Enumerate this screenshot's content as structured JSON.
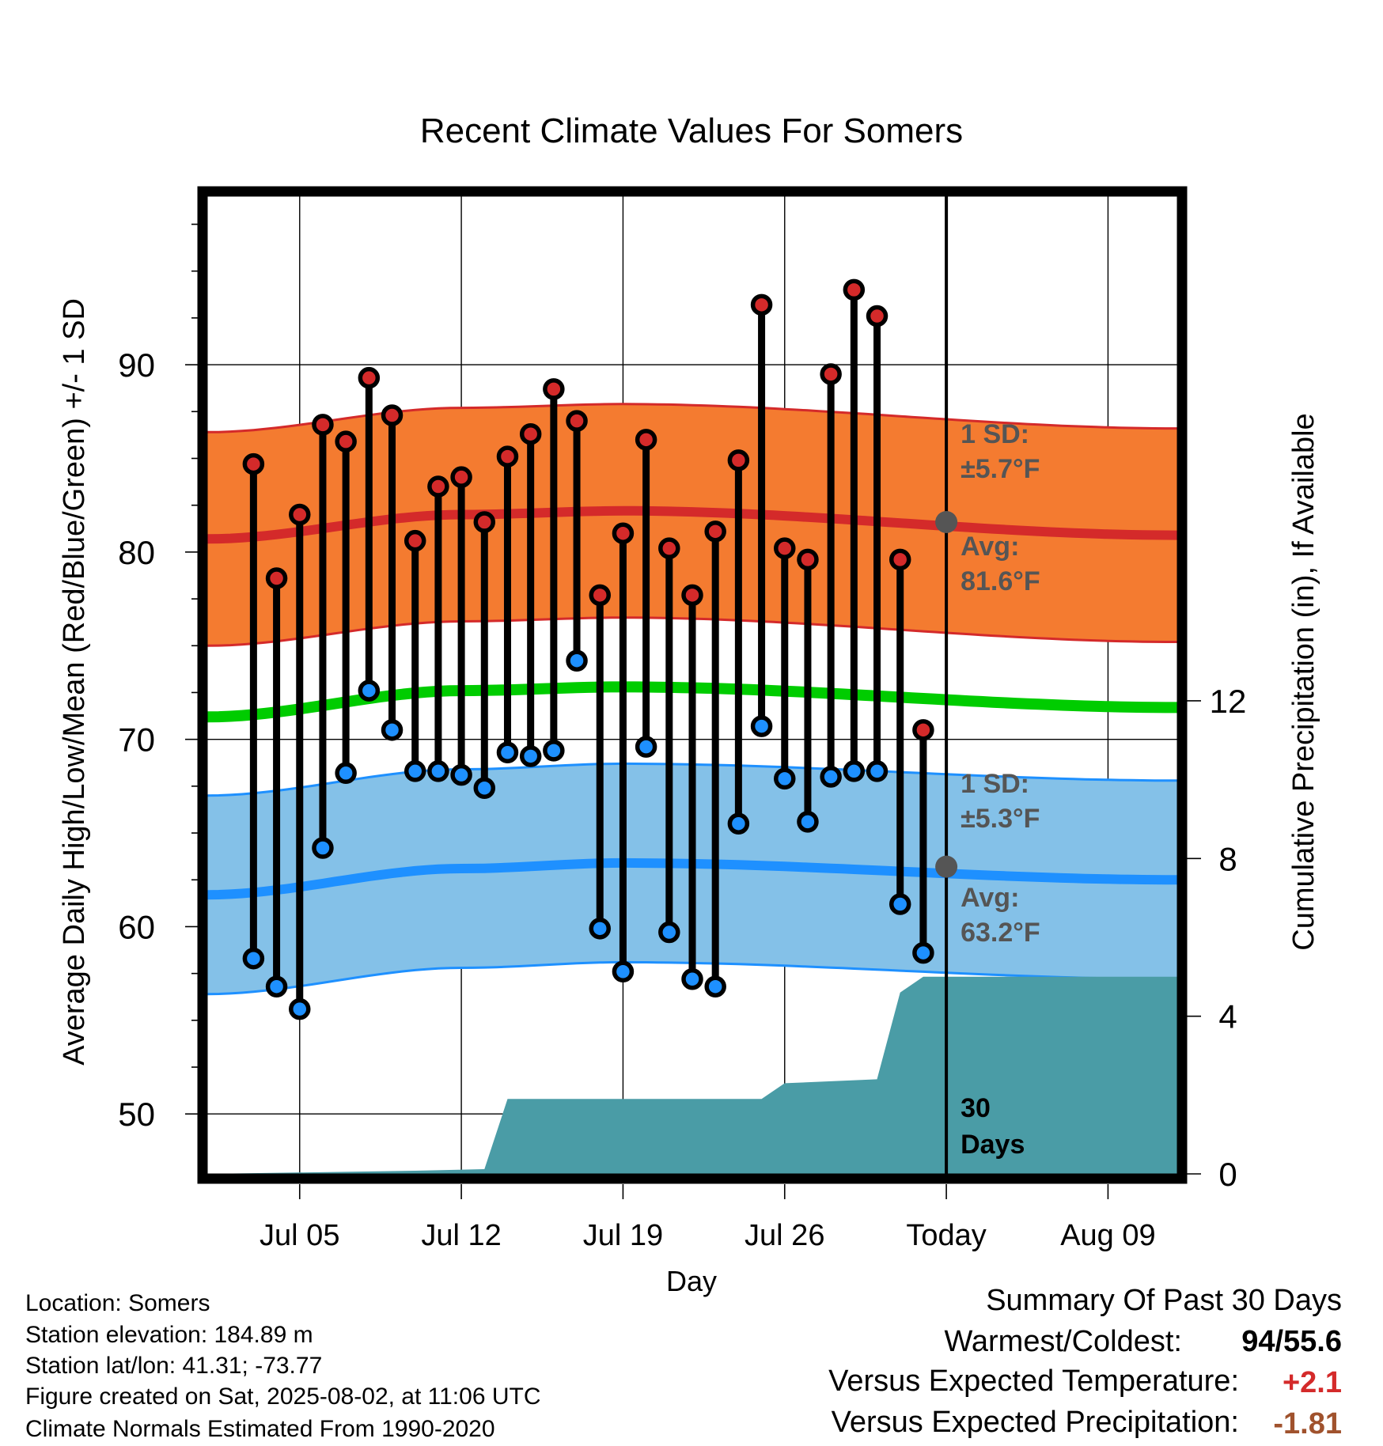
{
  "chart_data": {
    "type": "line",
    "title": "Recent Climate Values For Somers",
    "xlabel": "Day",
    "ylabel": "Average Daily High/Low/Mean (Red/Blue/Green) +/- 1 SD",
    "y2label": "Cumulative Precipitation (in), If Available",
    "x_tick_labels": [
      "Jul 05",
      "Jul 12",
      "Jul 19",
      "Jul 26",
      "Today",
      "Aug 09"
    ],
    "y_ticks": [
      50,
      60,
      70,
      80,
      90
    ],
    "y2_ticks": [
      0,
      4,
      8,
      12
    ],
    "ylim": [
      46.8,
      99.0
    ],
    "y2lim": [
      0,
      24.8
    ],
    "xlim": [
      "2025-07-01",
      "2025-08-12"
    ],
    "grid": true,
    "days": [
      "2025-07-03",
      "2025-07-04",
      "2025-07-05",
      "2025-07-06",
      "2025-07-07",
      "2025-07-08",
      "2025-07-09",
      "2025-07-10",
      "2025-07-11",
      "2025-07-12",
      "2025-07-13",
      "2025-07-14",
      "2025-07-15",
      "2025-07-16",
      "2025-07-17",
      "2025-07-18",
      "2025-07-19",
      "2025-07-20",
      "2025-07-21",
      "2025-07-22",
      "2025-07-23",
      "2025-07-24",
      "2025-07-25",
      "2025-07-26",
      "2025-07-27",
      "2025-07-28",
      "2025-07-29",
      "2025-07-30",
      "2025-07-31",
      "2025-08-01"
    ],
    "series": [
      {
        "name": "Daily High",
        "color": "#d42a2a",
        "values": [
          84.7,
          78.6,
          82,
          86.8,
          85.9,
          89.3,
          87.3,
          80.6,
          83.5,
          84,
          81.6,
          85.1,
          86.3,
          88.7,
          87,
          77.7,
          81,
          86,
          80.2,
          77.7,
          81.1,
          84.9,
          93.2,
          80.2,
          79.6,
          89.5,
          94,
          92.6,
          79.6,
          70.5
        ]
      },
      {
        "name": "Daily Low",
        "color": "#1e90ff",
        "values": [
          58.3,
          56.8,
          55.6,
          64.2,
          68.2,
          72.6,
          70.5,
          68.3,
          68.3,
          68.1,
          67.4,
          69.3,
          69.1,
          69.4,
          74.2,
          59.9,
          57.6,
          69.6,
          59.7,
          57.2,
          56.8,
          65.5,
          70.7,
          67.9,
          65.6,
          68,
          68.3,
          68.3,
          61.2,
          58.6
        ]
      },
      {
        "name": "Normal High",
        "color": "#d42a2a",
        "x": [
          "2025-07-01",
          "2025-07-12",
          "2025-07-19",
          "2025-08-12"
        ],
        "values": [
          80.7,
          82,
          82.2,
          80.9
        ]
      },
      {
        "name": "Normal Low",
        "color": "#1e90ff",
        "x": [
          "2025-07-01",
          "2025-07-12",
          "2025-07-19",
          "2025-08-12"
        ],
        "values": [
          61.7,
          63.1,
          63.4,
          62.5
        ]
      },
      {
        "name": "Normal Mean",
        "color": "#00cc00",
        "x": [
          "2025-07-01",
          "2025-07-12",
          "2025-07-19",
          "2025-08-12"
        ],
        "values": [
          71.2,
          72.6,
          72.8,
          71.7
        ]
      },
      {
        "name": "Cumulative Precipitation",
        "color": "#4a9ca6",
        "x": [
          "2025-07-01",
          "2025-07-10",
          "2025-07-13",
          "2025-07-14",
          "2025-07-25",
          "2025-07-26",
          "2025-07-30",
          "2025-07-31",
          "2025-08-01",
          "2025-08-12"
        ],
        "values": [
          0,
          0.08,
          0.12,
          1.9,
          1.9,
          2.3,
          2.4,
          4.6,
          5.0,
          5.0
        ]
      }
    ],
    "high_band_sd": 5.7,
    "low_band_sd": 5.3,
    "today": "2025-08-02",
    "today_high_avg": 81.6,
    "today_low_avg": 63.2,
    "annotations": {
      "high_sd_line1": "1 SD:",
      "high_sd_line2": "±5.7°F",
      "high_avg_line1": "Avg:",
      "high_avg_line2": "81.6°F",
      "low_sd_line1": "1 SD:",
      "low_sd_line2": "±5.3°F",
      "low_avg_line1": "Avg:",
      "low_avg_line2": "63.2°F",
      "precip_line1": "30",
      "precip_line2": "Days"
    },
    "colors": {
      "high_band": "#f47b30",
      "low_band": "#84c1e8",
      "precip_fill": "#4a9ca6",
      "annotation": "#555555"
    }
  },
  "footer": {
    "lines": [
      "Location: Somers",
      "Station elevation: 184.89 m",
      "Station lat/lon: 41.31; -73.77",
      "Figure created on Sat, 2025-08-02, at 11:06 UTC",
      "Climate Normals Estimated From 1990-2020"
    ]
  },
  "summary": {
    "title": "Summary Of Past 30 Days",
    "warmest_label": "Warmest/Coldest:",
    "warmest_value": "94/55.6",
    "temp_label": "Versus Expected Temperature:",
    "temp_value": "+2.1",
    "temp_color": "#d42a2a",
    "precip_label": "Versus Expected Precipitation:",
    "precip_value": "-1.81",
    "precip_color": "#a0522d"
  }
}
